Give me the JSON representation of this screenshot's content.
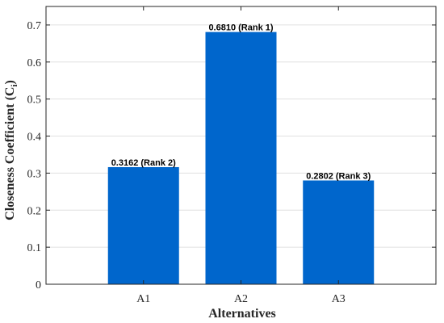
{
  "chart_data": {
    "type": "bar",
    "categories": [
      "A1",
      "A2",
      "A3"
    ],
    "values": [
      0.3162,
      0.681,
      0.2802
    ],
    "data_labels": [
      "0.3162  (Rank 2)",
      "0.6810  (Rank 1)",
      "0.2802  (Rank 3)"
    ],
    "title": "",
    "xlabel": "Alternatives",
    "ylabel_main": "Closeness Coefficient (C",
    "ylabel_sub": "i",
    "ylabel_close": ")",
    "ylim": [
      0,
      0.75
    ],
    "yticks": [
      0,
      0.1,
      0.2,
      0.3,
      0.4,
      0.5,
      0.6,
      0.7
    ],
    "ytick_labels": [
      "0",
      "0.1",
      "0.2",
      "0.3",
      "0.4",
      "0.5",
      "0.6",
      "0.7"
    ],
    "grid": "horizontal",
    "bar_color": "#0066CC",
    "axis_color": "#262626",
    "grid_color": "#E0E0E0"
  }
}
